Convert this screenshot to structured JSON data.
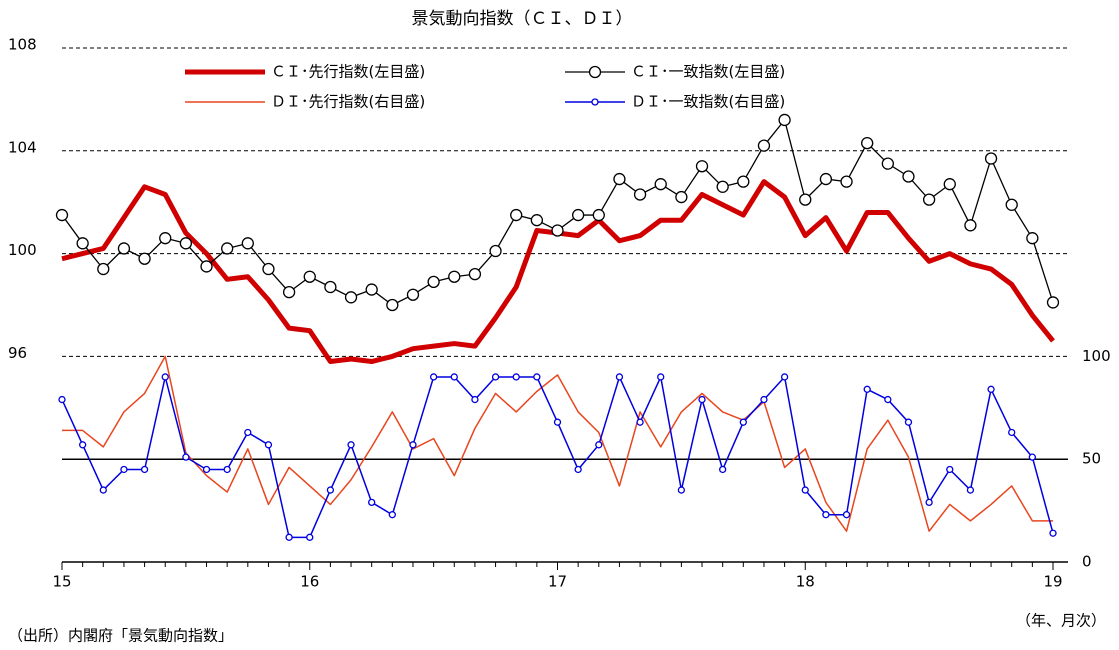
{
  "chart_data": {
    "type": "line",
    "title": "景気動向指数（ＣＩ、ＤＩ）",
    "categories": [
      "15",
      null,
      null,
      null,
      null,
      null,
      null,
      null,
      null,
      null,
      null,
      null,
      "16",
      null,
      null,
      null,
      null,
      null,
      null,
      null,
      null,
      null,
      null,
      null,
      "17",
      null,
      null,
      null,
      null,
      null,
      null,
      null,
      null,
      null,
      null,
      null,
      "18",
      null,
      null,
      null,
      null,
      null,
      null,
      null,
      null,
      null,
      null,
      null,
      "19"
    ],
    "series": [
      {
        "name": "ＣＩ･先行指数(左目盛)",
        "color": "#d00000",
        "values": [
          99.8,
          100.0,
          100.2,
          101.4,
          102.6,
          102.3,
          100.8,
          100.0,
          99.0,
          99.1,
          98.2,
          97.1,
          97.0,
          95.8,
          95.9,
          95.8,
          96.0,
          96.3,
          96.4,
          96.5,
          96.4,
          97.5,
          98.7,
          100.9,
          100.8,
          100.7,
          101.3,
          100.5,
          100.7,
          101.3,
          101.3,
          102.3,
          101.9,
          101.5,
          102.8,
          102.2,
          100.7,
          101.4,
          100.1,
          101.6,
          101.6,
          100.6,
          99.7,
          100.0,
          99.6,
          99.4,
          98.8,
          97.6,
          96.6
        ]
      },
      {
        "name": "ＣＩ･一致指数(左目盛)",
        "color": "#000000",
        "values": [
          101.5,
          100.4,
          99.4,
          100.2,
          99.8,
          100.6,
          100.4,
          99.5,
          100.2,
          100.4,
          99.4,
          98.5,
          99.1,
          98.7,
          98.3,
          98.6,
          98.0,
          98.4,
          98.9,
          99.1,
          99.2,
          100.1,
          101.5,
          101.3,
          100.9,
          101.5,
          101.5,
          102.9,
          102.3,
          102.7,
          102.2,
          103.4,
          102.6,
          102.8,
          104.2,
          105.2,
          102.1,
          102.9,
          102.8,
          104.3,
          103.5,
          103.0,
          102.1,
          102.7,
          101.1,
          103.7,
          101.9,
          100.6,
          98.1
        ]
      },
      {
        "name": "ＤＩ･先行指数(右目盛)",
        "color": "#e8461e",
        "axis": "y2",
        "values": [
          64,
          64,
          56,
          73,
          82,
          100,
          53,
          42,
          34,
          55,
          28,
          46,
          37,
          28,
          40,
          56,
          73,
          55,
          60,
          42,
          65,
          82,
          73,
          83,
          91,
          73,
          63,
          37,
          73,
          56,
          73,
          82,
          73,
          69,
          78,
          46,
          55,
          29,
          15,
          55,
          69,
          51,
          15,
          28,
          20,
          28,
          37,
          20,
          20
        ]
      },
      {
        "name": "ＤＩ･一致指数(右目盛)",
        "color": "#0000e0",
        "axis": "y2",
        "values": [
          79,
          57,
          35,
          45,
          45,
          90,
          51,
          45,
          45,
          63,
          57,
          12,
          12,
          35,
          57,
          29,
          23,
          57,
          90,
          90,
          79,
          90,
          90,
          90,
          68,
          45,
          57,
          90,
          68,
          90,
          35,
          79,
          45,
          68,
          79,
          90,
          35,
          23,
          23,
          84,
          79,
          68,
          29,
          45,
          35,
          84,
          63,
          51,
          14
        ]
      }
    ],
    "ylim": [
      88,
      108
    ],
    "yticks": [
      96,
      100,
      104,
      108
    ],
    "y2lim": [
      0,
      250
    ],
    "y2ticks": [
      0,
      50,
      100
    ],
    "annotations": [
      "（年、月次）",
      "（出所）内閣府「景気動向指数」"
    ]
  }
}
